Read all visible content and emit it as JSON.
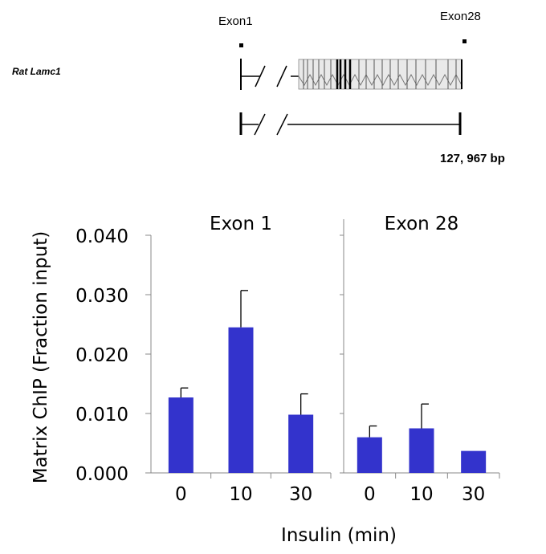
{
  "gene_diagram": {
    "gene_name": "Rat Lamc1",
    "exon_start_label": "Exon1",
    "exon_end_label": "Exon28",
    "length_label": "127, 967 bp"
  },
  "chart_data": {
    "type": "bar",
    "ylabel": "Matrix ChIP (Fraction input)",
    "xlabel": "Insulin (min)",
    "ylim": [
      0,
      0.04
    ],
    "yticks": [
      "0.000",
      "0.010",
      "0.020",
      "0.030",
      "0.040"
    ],
    "bar_color": "#3333cc",
    "panels": [
      {
        "title": "Exon 1",
        "categories": [
          "0",
          "10",
          "30"
        ],
        "values": [
          0.0127,
          0.0245,
          0.0098
        ],
        "errors": [
          0.0016,
          0.0062,
          0.0035
        ]
      },
      {
        "title": "Exon 28",
        "categories": [
          "0",
          "10",
          "30"
        ],
        "values": [
          0.006,
          0.0075,
          0.0037
        ],
        "errors": [
          0.0019,
          0.0041,
          0
        ]
      }
    ]
  }
}
